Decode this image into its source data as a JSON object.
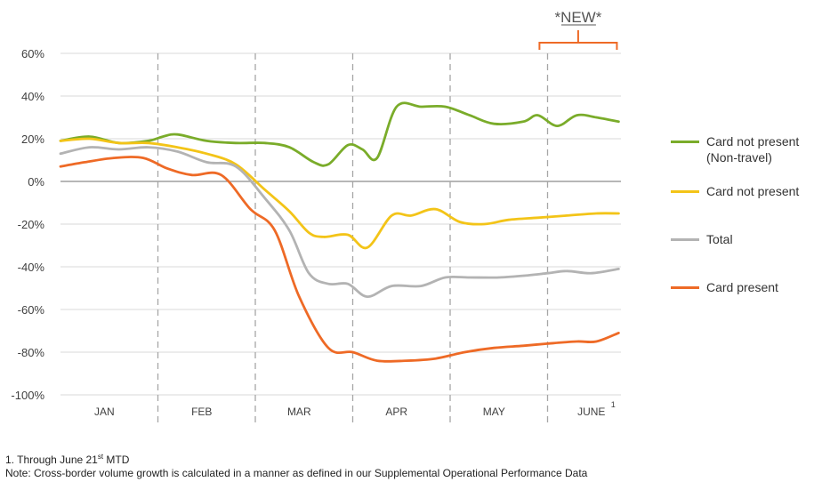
{
  "chart_data": {
    "type": "line",
    "title": "",
    "xlabel": "",
    "ylabel": "",
    "ylim": [
      -100,
      60
    ],
    "y_ticks": [
      "60%",
      "40%",
      "20%",
      "0%",
      "-20%",
      "-40%",
      "-60%",
      "-80%",
      "-100%"
    ],
    "y_tick_values": [
      60,
      40,
      20,
      0,
      -20,
      -40,
      -60,
      -80,
      -100
    ],
    "months": [
      "JAN",
      "FEB",
      "MAR",
      "APR",
      "MAY",
      "JUNE"
    ],
    "month_superscript": "1",
    "x_range": [
      0,
      5.73
    ],
    "gridlines": "vertical dashed at month boundaries",
    "annotation": {
      "text": "*NEW*",
      "bracket_from": 4.99,
      "bracket_to": 5.73
    },
    "legend_position": "right",
    "series": [
      {
        "name": "Card not present",
        "name_line2": "(Non-travel)",
        "color": "#7aac2a",
        "x": [
          0,
          0.3,
          0.6,
          0.9,
          1.05,
          1.2,
          1.5,
          1.8,
          2.1,
          2.35,
          2.6,
          2.75,
          2.95,
          3.1,
          3.25,
          3.45,
          3.7,
          3.95,
          4.2,
          4.45,
          4.75,
          4.9,
          5.1,
          5.3,
          5.5,
          5.73
        ],
        "values": [
          19,
          21,
          18,
          19,
          21,
          22,
          19,
          18,
          18,
          16,
          9,
          8,
          17,
          15,
          11,
          35,
          35,
          35,
          31,
          27,
          28,
          31,
          26,
          31,
          30,
          28
        ]
      },
      {
        "name": "Card not present",
        "color": "#f3c418",
        "x": [
          0,
          0.3,
          0.6,
          0.9,
          1.2,
          1.5,
          1.8,
          2.1,
          2.35,
          2.55,
          2.7,
          2.95,
          3.15,
          3.4,
          3.6,
          3.85,
          4.1,
          4.35,
          4.6,
          4.9,
          5.2,
          5.5,
          5.73
        ],
        "values": [
          19,
          20,
          18,
          18,
          16,
          13,
          8,
          -4,
          -14,
          -24,
          -26,
          -25,
          -31,
          -16,
          -16,
          -13,
          -19,
          -20,
          -18,
          -17,
          -16,
          -15,
          -15
        ]
      },
      {
        "name": "Total",
        "color": "#b3b3b3",
        "x": [
          0,
          0.3,
          0.6,
          0.9,
          1.2,
          1.5,
          1.8,
          2.1,
          2.35,
          2.55,
          2.75,
          2.95,
          3.15,
          3.4,
          3.7,
          3.95,
          4.2,
          4.5,
          4.8,
          5.0,
          5.2,
          5.45,
          5.73
        ],
        "values": [
          13,
          16,
          15,
          16,
          14,
          9,
          7,
          -8,
          -23,
          -43,
          -48,
          -48,
          -54,
          -49,
          -49,
          -45,
          -45,
          -45,
          -44,
          -43,
          -42,
          -43,
          -41
        ]
      },
      {
        "name": "Card present",
        "color": "#ee6a26",
        "x": [
          0,
          0.25,
          0.55,
          0.85,
          1.1,
          1.35,
          1.65,
          1.95,
          2.2,
          2.45,
          2.75,
          3.0,
          3.25,
          3.55,
          3.85,
          4.15,
          4.45,
          4.75,
          5.0,
          5.3,
          5.5,
          5.73
        ],
        "values": [
          7,
          9,
          11,
          11,
          6,
          3,
          3,
          -13,
          -23,
          -54,
          -78,
          -80,
          -84,
          -84,
          -83,
          -80,
          -78,
          -77,
          -76,
          -75,
          -75,
          -71
        ]
      }
    ]
  },
  "legend": [
    {
      "line1": "Card not present",
      "line2": "(Non-travel)",
      "color": "#7aac2a"
    },
    {
      "line1": "Card not present",
      "color": "#f3c418"
    },
    {
      "line1": "Total",
      "color": "#b3b3b3"
    },
    {
      "line1": "Card present",
      "color": "#ee6a26"
    }
  ],
  "footnotes": {
    "note1_prefix": "1. Through June 21",
    "note1_sup": "st",
    "note1_suffix": " MTD",
    "note2": "Note: Cross-border volume growth is calculated in a manner as defined in our Supplemental Operational Performance Data"
  }
}
